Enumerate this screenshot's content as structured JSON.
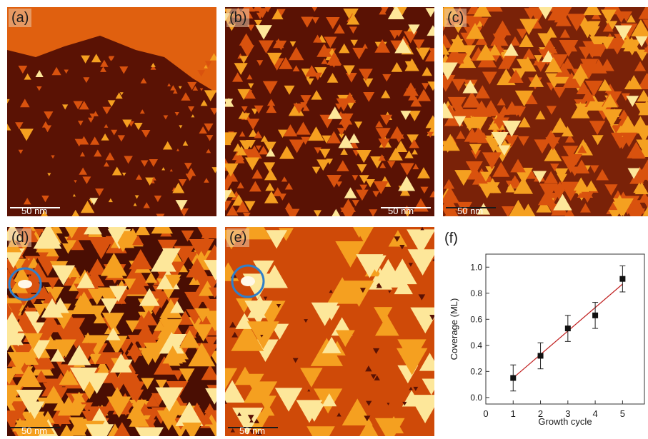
{
  "panels": [
    {
      "label": "(a)",
      "scalebar": "50 nm"
    },
    {
      "label": "(b)",
      "scalebar": "50 nm"
    },
    {
      "label": "(c)",
      "scalebar": "50 nm"
    },
    {
      "label": "(d)",
      "scalebar": "50 nm"
    },
    {
      "label": "(e)",
      "scalebar": "50 nm"
    }
  ],
  "colors": {
    "dark": "#5a1204",
    "mid": "#d9520e",
    "light": "#f5a020",
    "bright": "#fde79a",
    "circle": "#2f7fc9",
    "fit": "#c02020"
  },
  "chart_data": {
    "type": "scatter",
    "panel_label": "(f)",
    "xlabel": "Growth cycle",
    "ylabel": "Coverage (ML)",
    "xticks": [
      "0",
      "1",
      "2",
      "3",
      "4",
      "5"
    ],
    "yticks": [
      "0.0",
      "0.2",
      "0.4",
      "0.6",
      "0.8",
      "1.0"
    ],
    "xlim": [
      0,
      5.8
    ],
    "ylim": [
      -0.05,
      1.1
    ],
    "x": [
      1,
      2,
      3,
      4,
      5
    ],
    "y": [
      0.15,
      0.32,
      0.53,
      0.63,
      0.91
    ],
    "yerr": [
      0.1,
      0.1,
      0.1,
      0.1,
      0.1
    ],
    "fit": {
      "x": [
        1,
        5
      ],
      "y": [
        0.15,
        0.87
      ]
    }
  }
}
